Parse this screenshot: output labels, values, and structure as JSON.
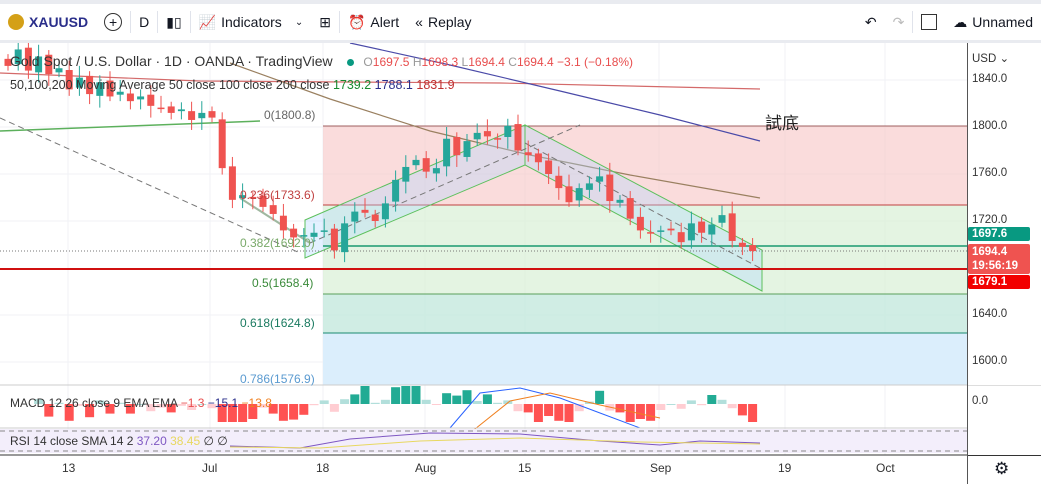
{
  "toolbar": {
    "symbol": "XAUUSD",
    "interval": "D",
    "indicators": "Indicators",
    "alert": "Alert",
    "replay": "Replay",
    "layout_name": "Unnamed"
  },
  "legend": {
    "title": "Gold Spot / U.S. Dollar · 1D · OANDA · TradingView",
    "o_label": "O",
    "o": "1697.5",
    "h_label": "H",
    "h": "1698.3",
    "l_label": "L",
    "l": "1694.4",
    "c_label": "C",
    "c": "1694.4",
    "change": "−3.1 (−0.18%)",
    "ma_label": "50,100,200 Moving Average 50 close 100 close 200 close",
    "ma50": "1739.2",
    "ma100": "1788.1",
    "ma200": "1831.9"
  },
  "fib": [
    {
      "label": "0(1800.8)"
    },
    {
      "label": "0.236(1733.6)"
    },
    {
      "label": "0.382(1692.0)"
    },
    {
      "label": "0.5(1658.4)"
    },
    {
      "label": "0.618(1624.8)"
    },
    {
      "label": "0.786(1576.9)"
    }
  ],
  "annotation": "試底",
  "macd": {
    "label": "MACD 12 26 close 9 EMA EMA",
    "hist": "−1.3",
    "macd": "−15.1",
    "signal": "−13.8",
    "axis": "0.0"
  },
  "rsi": {
    "label": "RSI 14 close SMA 14 2",
    "rsi": "37.20",
    "sma": "38.45",
    "v1": "∅",
    "v2": "∅"
  },
  "price_axis": {
    "currency": "USD",
    "ticks": [
      "1840.0",
      "1800.0",
      "1760.0",
      "1720.0",
      "1640.0",
      "1600.0"
    ],
    "prev_tag": "1697.6",
    "last_tag": "1694.4",
    "countdown": "19:56:19",
    "line_tag": "1679.1"
  },
  "time_axis": [
    "13",
    "Jul",
    "18",
    "Aug",
    "15",
    "Sep",
    "19",
    "Oct"
  ],
  "chart_data": {
    "type": "candlestick",
    "ylim": [
      1560,
      1870
    ],
    "closes": [
      1852,
      1866,
      1848,
      1860,
      1845,
      1850,
      1832,
      1842,
      1828,
      1838,
      1826,
      1830,
      1822,
      1826,
      1818,
      1816,
      1812,
      1815,
      1806,
      1812,
      1808,
      1765,
      1738,
      1742,
      1740,
      1732,
      1726,
      1712,
      1706,
      1708,
      1710,
      1712,
      1695,
      1718,
      1728,
      1727,
      1720,
      1735,
      1755,
      1766,
      1772,
      1762,
      1765,
      1790,
      1776,
      1788,
      1795,
      1792,
      1790,
      1801,
      1780,
      1776,
      1770,
      1760,
      1748,
      1736,
      1748,
      1752,
      1758,
      1737,
      1738,
      1722,
      1712,
      1710,
      1712,
      1712,
      1702,
      1718,
      1710,
      1717,
      1725,
      1703,
      1698,
      1694.4
    ]
  }
}
